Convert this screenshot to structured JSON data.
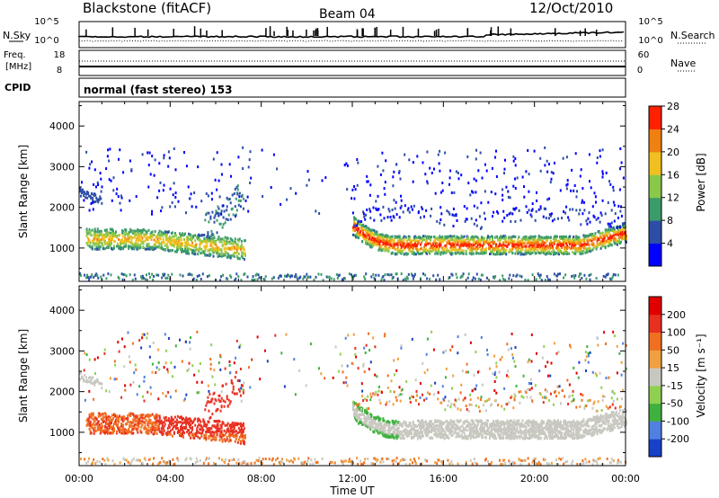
{
  "header": {
    "station": "Blackstone (fitACF)",
    "beam": "Beam 04",
    "date": "12/Oct/2010"
  },
  "left_labels": {
    "nsky": "N.Sky",
    "freq": "Freq.",
    "freq_unit": "[MHz]",
    "cpid": "CPID"
  },
  "right_labels": {
    "nsearch": "N.Search",
    "nave": "Nave"
  },
  "nsky_ticks": [
    "10^5",
    "10^0"
  ],
  "freq_ticks": [
    "18",
    "8"
  ],
  "nave_ticks": [
    "60",
    "0"
  ],
  "cpid_text": "normal (fast stereo) 153",
  "chart_data": [
    {
      "type": "heatmap",
      "parameter": "Power",
      "ylabel": "Slant Range [km]",
      "ylim": [
        180,
        4600
      ],
      "xlim": [
        0,
        24
      ],
      "x_ticks": [
        "00:00",
        "04:00",
        "08:00",
        "12:00",
        "16:00",
        "20:00",
        "00:00"
      ],
      "y_ticks": [
        1000,
        2000,
        3000,
        4000
      ],
      "colorbar": {
        "label": "Power [dB]",
        "ticks": [
          "4",
          "8",
          "12",
          "16",
          "20",
          "24",
          "28"
        ],
        "colors": [
          "#0000ff",
          "#2c4ea6",
          "#3c9b6a",
          "#8ac84a",
          "#f0c020",
          "#f08010",
          "#ff2000"
        ]
      }
    },
    {
      "type": "heatmap",
      "parameter": "Velocity",
      "ylabel": "Slant Range [km]",
      "xlabel": "Time UT",
      "ylim": [
        180,
        4600
      ],
      "xlim": [
        0,
        24
      ],
      "x_ticks": [
        "00:00",
        "04:00",
        "08:00",
        "12:00",
        "16:00",
        "20:00",
        "00:00"
      ],
      "y_ticks": [
        1000,
        2000,
        3000,
        4000
      ],
      "colorbar": {
        "label": "Velocity [m s⁻¹]",
        "ticks": [
          "200",
          "100",
          "50",
          "15",
          "-15",
          "-50",
          "-100",
          "-200"
        ],
        "colors": [
          "#1840c8",
          "#5080e0",
          "#40b040",
          "#90d050",
          "#c8c8c0",
          "#f0a040",
          "#f07020",
          "#e83020",
          "#e00000"
        ]
      }
    }
  ]
}
